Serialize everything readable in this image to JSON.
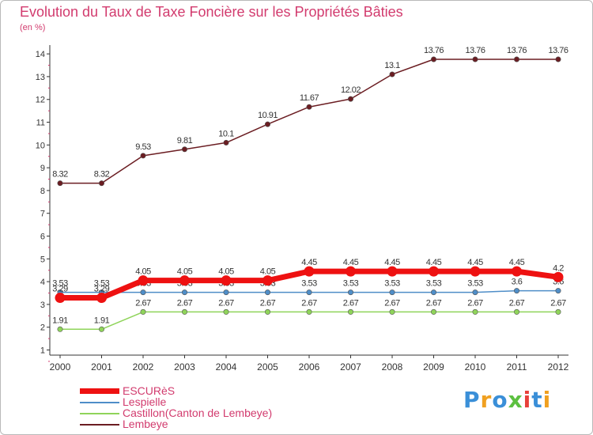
{
  "chart_data": {
    "type": "line",
    "title": "Evolution du Taux de Taxe Foncière sur les Propriétés Bâties",
    "subtitle": "(en %)",
    "x": [
      "2000",
      "2001",
      "2002",
      "2003",
      "2004",
      "2005",
      "2006",
      "2007",
      "2008",
      "2009",
      "2010",
      "2011",
      "2012"
    ],
    "ylim": [
      0.5,
      14.2
    ],
    "yticks": [
      1,
      2,
      3,
      4,
      5,
      6,
      7,
      8,
      9,
      10,
      11,
      12,
      13,
      14
    ],
    "series": [
      {
        "name": "Lembeye",
        "color": "#6b1d22",
        "values": [
          8.32,
          8.32,
          9.53,
          9.81,
          10.1,
          10.91,
          11.67,
          12.02,
          13.1,
          13.76,
          13.76,
          13.76,
          13.76
        ],
        "labels": [
          "8.32",
          "8.32",
          "9.53",
          "9.81",
          "10.1",
          "10.91",
          "11.67",
          "12.02",
          "13.1",
          "13.76",
          "13.76",
          "13.76",
          "13.76"
        ]
      },
      {
        "name": "Castillon(Canton de Lembeye)",
        "color": "#8fd45a",
        "values": [
          1.91,
          1.91,
          2.67,
          2.67,
          2.67,
          2.67,
          2.67,
          2.67,
          2.67,
          2.67,
          2.67,
          2.67,
          2.67
        ],
        "labels": [
          "1.91",
          "1.91",
          "2.67",
          "2.67",
          "2.67",
          "2.67",
          "2.67",
          "2.67",
          "2.67",
          "2.67",
          "2.67",
          "2.67",
          "2.67"
        ]
      },
      {
        "name": "Lespielle",
        "color": "#4f8ec8",
        "values": [
          3.53,
          3.53,
          3.53,
          3.53,
          3.53,
          3.53,
          3.53,
          3.53,
          3.53,
          3.53,
          3.53,
          3.6,
          3.6
        ],
        "labels": [
          "3.53",
          "3.53",
          "3.53",
          "3.53",
          "3.53",
          "3.53",
          "3.53",
          "3.53",
          "3.53",
          "3.53",
          "3.53",
          "3.6",
          "3.6"
        ]
      },
      {
        "name": "ESCURèS",
        "color": "#ee1111",
        "values": [
          3.29,
          3.29,
          4.05,
          4.05,
          4.05,
          4.05,
          4.45,
          4.45,
          4.45,
          4.45,
          4.45,
          4.45,
          4.2
        ],
        "labels": [
          "3.29",
          "3.29",
          "4.05",
          "4.05",
          "4.05",
          "4.05",
          "4.45",
          "4.45",
          "4.45",
          "4.45",
          "4.45",
          "4.45",
          "4.2"
        ]
      }
    ],
    "legend_order": [
      "ESCURèS",
      "Lespielle",
      "Castillon(Canton de Lembeye)",
      "Lembeye"
    ],
    "legend_position": "bottom-left",
    "grid": false
  },
  "logo": {
    "text": "Proxiti"
  }
}
